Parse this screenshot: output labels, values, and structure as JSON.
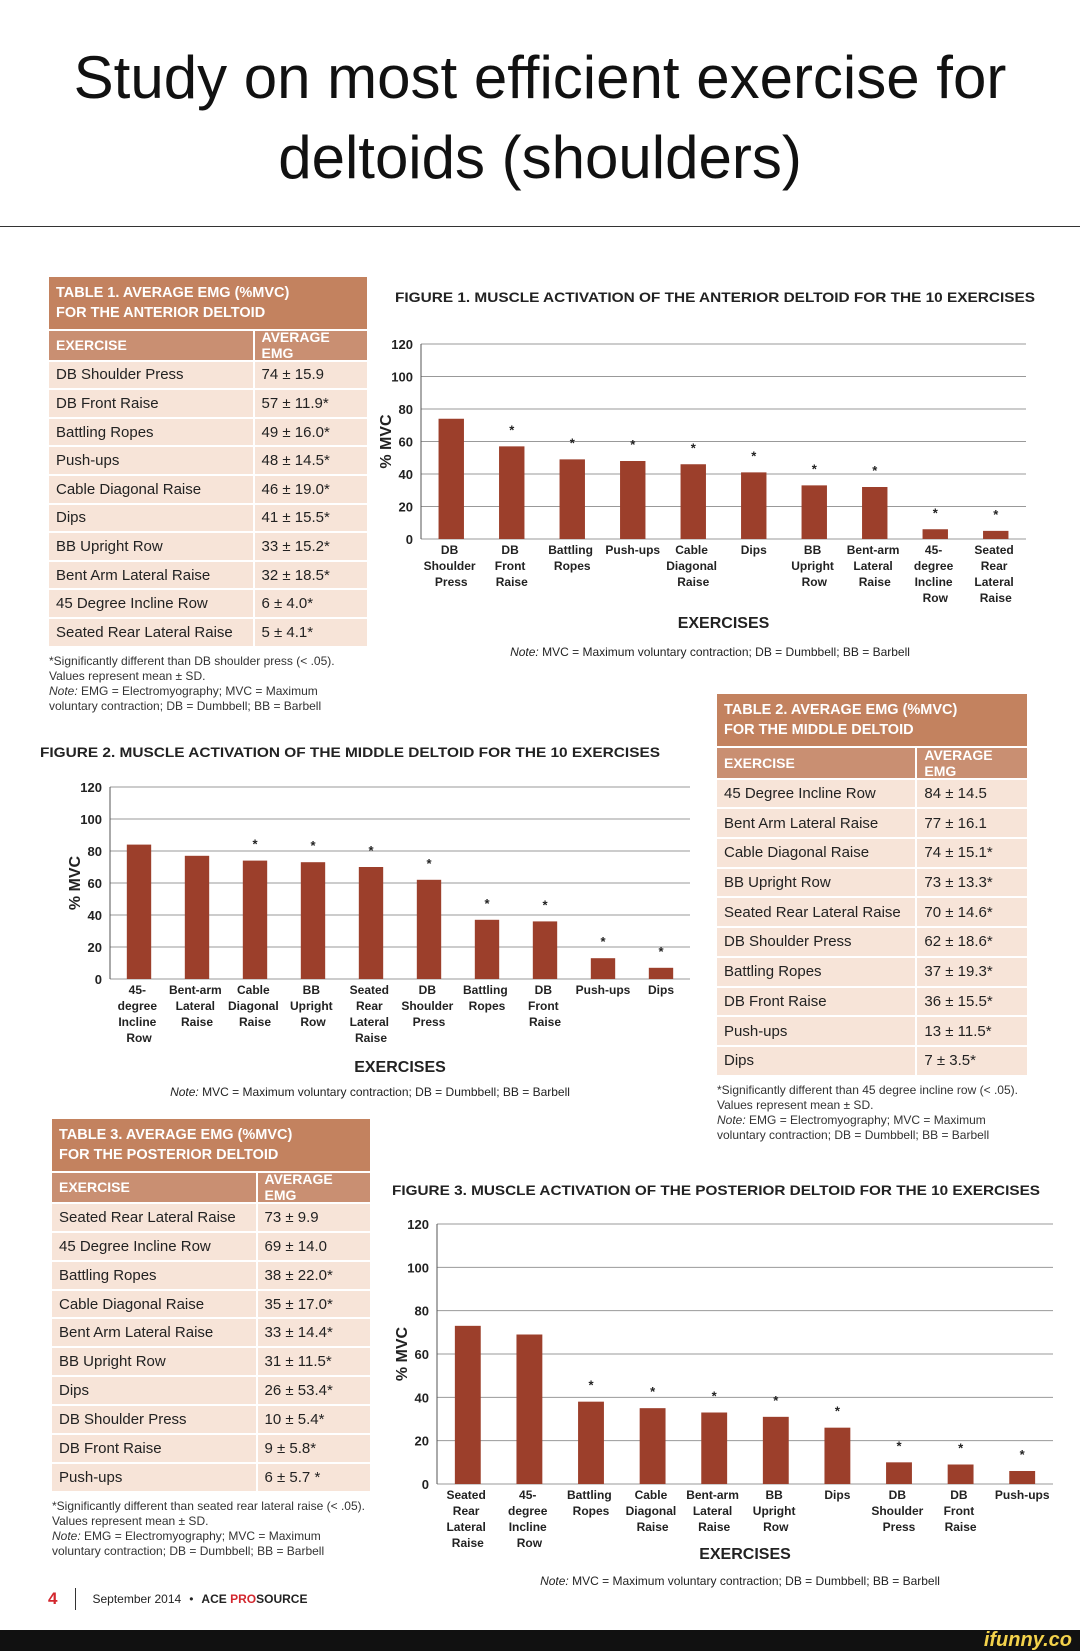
{
  "header": {
    "title": "Study on most efficient exercise for deltoids (shoulders)"
  },
  "tables": [
    {
      "title": [
        "TABLE 1. AVERAGE EMG (%MVC)",
        "FOR THE ANTERIOR DELTOID"
      ],
      "columns": [
        "EXERCISE",
        "AVERAGE EMG"
      ],
      "rows": [
        [
          "DB Shoulder Press",
          "74 ± 15.9"
        ],
        [
          "DB Front Raise",
          "57 ± 11.9*"
        ],
        [
          "Battling Ropes",
          "49 ± 16.0*"
        ],
        [
          "Push-ups",
          "48 ± 14.5*"
        ],
        [
          "Cable Diagonal Raise",
          "46 ± 19.0*"
        ],
        [
          "Dips",
          "41 ± 15.5*"
        ],
        [
          "BB Upright Row",
          "33 ± 15.2*"
        ],
        [
          "Bent Arm Lateral Raise",
          "32 ± 18.5*"
        ],
        [
          "45 Degree Incline Row",
          "6 ± 4.0*"
        ],
        [
          "Seated Rear Lateral Raise",
          "5 ± 4.1*"
        ]
      ],
      "footnotes": [
        "*Significantly different than DB shoulder press (< .05).",
        "Values represent mean ± SD."
      ],
      "note_label": "Note:",
      "note": "EMG = Electromyography; MVC = Maximum voluntary contraction; DB = Dumbbell; BB = Barbell"
    },
    {
      "title": [
        "TABLE 2. AVERAGE EMG (%MVC)",
        "FOR THE MIDDLE DELTOID"
      ],
      "columns": [
        "EXERCISE",
        "AVERAGE EMG"
      ],
      "rows": [
        [
          "45 Degree Incline Row",
          "84 ± 14.5"
        ],
        [
          "Bent Arm Lateral Raise",
          "77 ± 16.1"
        ],
        [
          "Cable Diagonal Raise",
          "74 ± 15.1*"
        ],
        [
          "BB Upright Row",
          "73 ± 13.3*"
        ],
        [
          "Seated Rear Lateral Raise",
          "70 ± 14.6*"
        ],
        [
          "DB Shoulder Press",
          "62 ± 18.6*"
        ],
        [
          "Battling Ropes",
          "37 ± 19.3*"
        ],
        [
          "DB Front Raise",
          "36 ± 15.5*"
        ],
        [
          "Push-ups",
          "13 ± 11.5*"
        ],
        [
          "Dips",
          "7 ± 3.5*"
        ]
      ],
      "footnotes": [
        "*Significantly different than 45 degree incline row (< .05).",
        "Values represent mean ± SD."
      ],
      "note_label": "Note:",
      "note": "EMG = Electromyography; MVC = Maximum voluntary contraction; DB = Dumbbell; BB = Barbell"
    },
    {
      "title": [
        "TABLE 3. AVERAGE EMG (%MVC)",
        "FOR THE POSTERIOR DELTOID"
      ],
      "columns": [
        "EXERCISE",
        "AVERAGE EMG"
      ],
      "rows": [
        [
          "Seated Rear Lateral Raise",
          "73 ± 9.9"
        ],
        [
          "45 Degree Incline Row",
          "69 ± 14.0"
        ],
        [
          "Battling Ropes",
          "38 ± 22.0*"
        ],
        [
          "Cable Diagonal Raise",
          "35 ± 17.0*"
        ],
        [
          "Bent Arm Lateral Raise",
          "33 ± 14.4*"
        ],
        [
          "BB Upright Row",
          "31 ± 11.5*"
        ],
        [
          "Dips",
          "26 ± 53.4*"
        ],
        [
          "DB Shoulder Press",
          "10 ± 5.4*"
        ],
        [
          "DB Front Raise",
          "9 ± 5.8*"
        ],
        [
          "Push-ups",
          "6 ± 5.7 *"
        ]
      ],
      "footnotes": [
        "*Significantly different than seated rear lateral raise (< .05).",
        "Values represent mean ± SD."
      ],
      "note_label": "Note:",
      "note": "EMG = Electromyography; MVC = Maximum voluntary contraction; DB = Dumbbell; BB = Barbell"
    }
  ],
  "chart_data": [
    {
      "type": "bar",
      "title": "FIGURE 1. MUSCLE ACTIVATION OF THE ANTERIOR DELTOID FOR THE 10 EXERCISES",
      "y_label": "% MVC",
      "x_label": "EXERCISES",
      "categories": [
        "DB Shoulder Press",
        "DB Front Raise",
        "Battling Ropes",
        "Push-ups",
        "Cable Diagonal Raise",
        "Dips",
        "BB Upright Row",
        "Bent-arm Lateral Raise",
        "45- degree Incline Row",
        "Seated Rear Lateral Raise"
      ],
      "values": [
        74,
        57,
        49,
        48,
        46,
        41,
        33,
        32,
        6,
        5
      ],
      "significant": [
        false,
        true,
        true,
        true,
        true,
        true,
        true,
        true,
        true,
        true
      ],
      "significance_mark": "*",
      "color": "#9c3f2b",
      "ylim": [
        0,
        120
      ],
      "yticks": [
        0,
        20,
        40,
        60,
        80,
        100,
        120
      ],
      "grid": true,
      "note_label": "Note:",
      "note": "MVC = Maximum voluntary contraction; DB = Dumbbell; BB = Barbell"
    },
    {
      "type": "bar",
      "title": "FIGURE 2. MUSCLE ACTIVATION OF THE MIDDLE DELTOID FOR THE 10 EXERCISES",
      "y_label": "% MVC",
      "x_label": "EXERCISES",
      "categories": [
        "45- degree Incline Row",
        "Bent-arm Lateral Raise",
        "Cable Diagonal Raise",
        "BB Upright Row",
        "Seated Rear Lateral Raise",
        "DB Shoulder Press",
        "Battling Ropes",
        "DB Front Raise",
        "Push-ups",
        "Dips"
      ],
      "values": [
        84,
        77,
        74,
        73,
        70,
        62,
        37,
        36,
        13,
        7
      ],
      "significant": [
        false,
        false,
        true,
        true,
        true,
        true,
        true,
        true,
        true,
        true
      ],
      "significance_mark": "*",
      "color": "#9c3f2b",
      "ylim": [
        0,
        120
      ],
      "yticks": [
        0,
        20,
        40,
        60,
        80,
        100,
        120
      ],
      "grid": true,
      "note_label": "Note:",
      "note": "MVC = Maximum voluntary contraction; DB = Dumbbell; BB = Barbell"
    },
    {
      "type": "bar",
      "title": "FIGURE 3. MUSCLE ACTIVATION OF THE POSTERIOR DELTOID FOR THE 10 EXERCISES",
      "y_label": "% MVC",
      "x_label": "EXERCISES",
      "categories": [
        "Seated Rear Lateral Raise",
        "45- degree Incline Row",
        "Battling Ropes",
        "Cable Diagonal Raise",
        "Bent-arm Lateral Raise",
        "BB Upright Row",
        "Dips",
        "DB Shoulder Press",
        "DB Front Raise",
        "Push-ups"
      ],
      "values": [
        73,
        69,
        38,
        35,
        33,
        31,
        26,
        10,
        9,
        6
      ],
      "significant": [
        false,
        false,
        true,
        true,
        true,
        true,
        true,
        true,
        true,
        true
      ],
      "significance_mark": "*",
      "color": "#9c3f2b",
      "ylim": [
        0,
        120
      ],
      "yticks": [
        0,
        20,
        40,
        60,
        80,
        100,
        120
      ],
      "grid": true,
      "note_label": "Note:",
      "note": "MVC = Maximum voluntary contraction; DB = Dumbbell; BB = Barbell"
    }
  ],
  "footer": {
    "page": "4",
    "issue": "September 2014",
    "separator": "•",
    "brand_a": "ACE",
    "brand_b": "PRO",
    "brand_c": "SOURCE"
  },
  "watermark": "ifunny.co"
}
